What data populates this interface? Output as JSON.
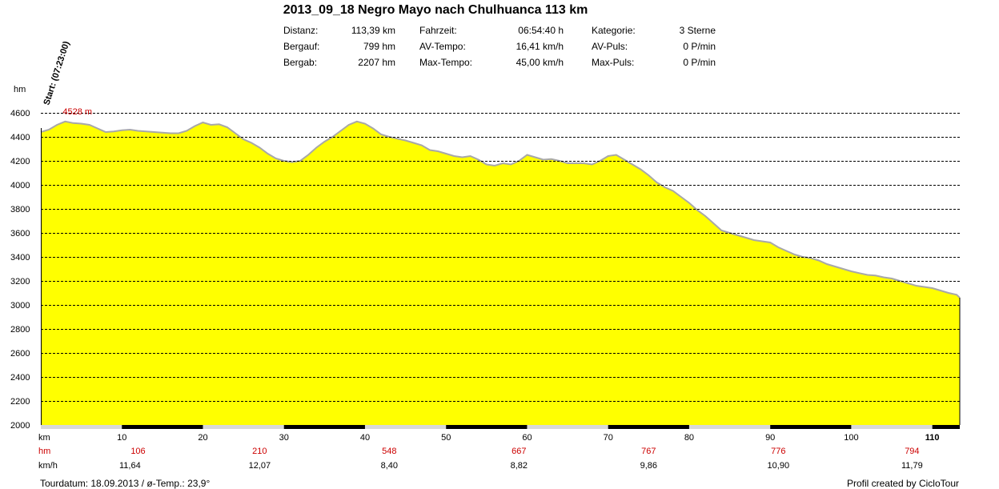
{
  "title": "2013_09_18 Negro Mayo nach Chulhuanca 113 km",
  "stats": [
    {
      "label": "Distanz:",
      "value": "113,39 km"
    },
    {
      "label": "Bergauf:",
      "value": "799 hm"
    },
    {
      "label": "Bergab:",
      "value": "2207 hm"
    },
    {
      "label": "Fahrzeit:",
      "value": "06:54:40 h"
    },
    {
      "label": "AV-Tempo:",
      "value": "16,41 km/h"
    },
    {
      "label": "Max-Tempo:",
      "value": "45,00 km/h"
    },
    {
      "label": "Kategorie:",
      "value": "3 Sterne"
    },
    {
      "label": "AV-Puls:",
      "value": "0 P/min"
    },
    {
      "label": "Max-Puls:",
      "value": "0 P/min"
    }
  ],
  "footer": {
    "left": "Tourdatum: 18.09.2013  /  ø-Temp.: 23,9°",
    "right": "Profil created by CicloTour"
  },
  "colors": {
    "fill": "#ffff00",
    "outline": "#a8a8a8",
    "grid": "#000000",
    "red": "#cc0000"
  },
  "chart_data": {
    "type": "area",
    "yunit": "hm",
    "ylim": [
      2000,
      4600
    ],
    "yticks": [
      2000,
      2200,
      2400,
      2600,
      2800,
      3000,
      3200,
      3400,
      3600,
      3800,
      4000,
      4200,
      4400,
      4600
    ],
    "xlim": [
      0,
      113.39
    ],
    "xticks": [
      10,
      20,
      30,
      40,
      50,
      60,
      70,
      80,
      90,
      100,
      110
    ],
    "row_labels": {
      "km": "km",
      "hm": "hm",
      "kmh": "km/h"
    },
    "start_label": "Start: (07:23:00)",
    "max_label": "4528 m",
    "max_point": {
      "x": 3,
      "y": 4528
    },
    "grid": true,
    "segment_hm": [
      {
        "x": 12,
        "value": "106"
      },
      {
        "x": 27,
        "value": "210"
      },
      {
        "x": 43,
        "value": "548"
      },
      {
        "x": 59,
        "value": "667"
      },
      {
        "x": 75,
        "value": "767"
      },
      {
        "x": 91,
        "value": "776"
      },
      {
        "x": 107.5,
        "value": "794"
      }
    ],
    "segment_kmh": [
      {
        "x": 11,
        "value": "11,64"
      },
      {
        "x": 27,
        "value": "12,07"
      },
      {
        "x": 43,
        "value": "8,40"
      },
      {
        "x": 59,
        "value": "8,82"
      },
      {
        "x": 75,
        "value": "9,86"
      },
      {
        "x": 91,
        "value": "10,90"
      },
      {
        "x": 107.5,
        "value": "11,79"
      }
    ],
    "profile": [
      [
        0,
        4440
      ],
      [
        1,
        4460
      ],
      [
        2,
        4500
      ],
      [
        3,
        4528
      ],
      [
        4,
        4515
      ],
      [
        5,
        4510
      ],
      [
        6,
        4500
      ],
      [
        7,
        4470
      ],
      [
        8,
        4440
      ],
      [
        9,
        4445
      ],
      [
        10,
        4455
      ],
      [
        11,
        4460
      ],
      [
        12,
        4450
      ],
      [
        13,
        4445
      ],
      [
        14,
        4440
      ],
      [
        15,
        4435
      ],
      [
        16,
        4430
      ],
      [
        17,
        4430
      ],
      [
        18,
        4450
      ],
      [
        19,
        4490
      ],
      [
        20,
        4520
      ],
      [
        21,
        4500
      ],
      [
        22,
        4505
      ],
      [
        23,
        4480
      ],
      [
        24,
        4430
      ],
      [
        25,
        4380
      ],
      [
        26,
        4350
      ],
      [
        27,
        4310
      ],
      [
        28,
        4260
      ],
      [
        29,
        4220
      ],
      [
        30,
        4200
      ],
      [
        31,
        4190
      ],
      [
        32,
        4200
      ],
      [
        33,
        4250
      ],
      [
        34,
        4310
      ],
      [
        35,
        4360
      ],
      [
        36,
        4400
      ],
      [
        37,
        4450
      ],
      [
        38,
        4500
      ],
      [
        39,
        4528
      ],
      [
        40,
        4510
      ],
      [
        41,
        4470
      ],
      [
        42,
        4420
      ],
      [
        43,
        4400
      ],
      [
        44,
        4385
      ],
      [
        45,
        4370
      ],
      [
        46,
        4350
      ],
      [
        47,
        4330
      ],
      [
        48,
        4290
      ],
      [
        49,
        4280
      ],
      [
        50,
        4260
      ],
      [
        51,
        4240
      ],
      [
        52,
        4230
      ],
      [
        53,
        4240
      ],
      [
        54,
        4210
      ],
      [
        55,
        4170
      ],
      [
        56,
        4160
      ],
      [
        57,
        4180
      ],
      [
        58,
        4170
      ],
      [
        59,
        4200
      ],
      [
        60,
        4250
      ],
      [
        61,
        4230
      ],
      [
        62,
        4210
      ],
      [
        63,
        4215
      ],
      [
        64,
        4200
      ],
      [
        65,
        4180
      ],
      [
        66,
        4180
      ],
      [
        67,
        4180
      ],
      [
        68,
        4170
      ],
      [
        69,
        4200
      ],
      [
        70,
        4240
      ],
      [
        71,
        4250
      ],
      [
        72,
        4210
      ],
      [
        73,
        4170
      ],
      [
        74,
        4130
      ],
      [
        75,
        4080
      ],
      [
        76,
        4020
      ],
      [
        77,
        3980
      ],
      [
        78,
        3950
      ],
      [
        79,
        3900
      ],
      [
        80,
        3850
      ],
      [
        81,
        3790
      ],
      [
        82,
        3740
      ],
      [
        83,
        3680
      ],
      [
        84,
        3620
      ],
      [
        85,
        3600
      ],
      [
        86,
        3580
      ],
      [
        87,
        3560
      ],
      [
        88,
        3540
      ],
      [
        89,
        3530
      ],
      [
        90,
        3520
      ],
      [
        91,
        3480
      ],
      [
        92,
        3450
      ],
      [
        93,
        3420
      ],
      [
        94,
        3400
      ],
      [
        95,
        3390
      ],
      [
        96,
        3370
      ],
      [
        97,
        3340
      ],
      [
        98,
        3320
      ],
      [
        99,
        3300
      ],
      [
        100,
        3280
      ],
      [
        101,
        3265
      ],
      [
        102,
        3250
      ],
      [
        103,
        3245
      ],
      [
        104,
        3230
      ],
      [
        105,
        3220
      ],
      [
        106,
        3200
      ],
      [
        107,
        3180
      ],
      [
        108,
        3160
      ],
      [
        109,
        3150
      ],
      [
        110,
        3140
      ],
      [
        111,
        3120
      ],
      [
        112,
        3100
      ],
      [
        113,
        3085
      ],
      [
        113.39,
        3060
      ]
    ]
  }
}
